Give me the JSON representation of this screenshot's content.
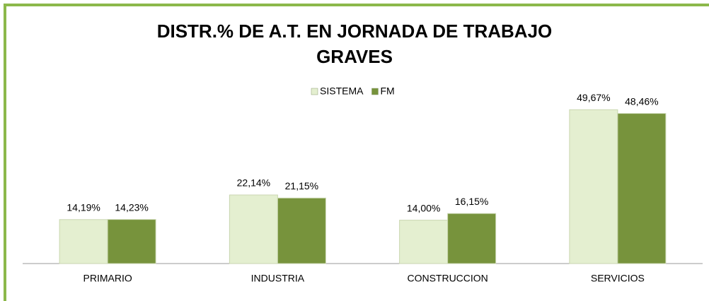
{
  "chart_data": {
    "type": "bar",
    "title": [
      "DISTR.% DE A.T. EN JORNADA DE TRABAJO",
      "GRAVES"
    ],
    "categories": [
      "PRIMARIO",
      "INDUSTRIA",
      "CONSTRUCCION",
      "SERVICIOS"
    ],
    "series": [
      {
        "name": "SISTEMA",
        "color": "#e4efd0",
        "values": [
          14.19,
          22.14,
          14.0,
          49.67
        ],
        "value_labels": [
          "14,19%",
          "22,14%",
          "14,00%",
          "49,67%"
        ]
      },
      {
        "name": "FM",
        "color": "#77933c",
        "values": [
          14.23,
          21.15,
          16.15,
          48.46
        ],
        "value_labels": [
          "14,23%",
          "21,15%",
          "16,15%",
          "48,46%"
        ]
      }
    ],
    "ylim": [
      0,
      60
    ],
    "legend": "top"
  }
}
